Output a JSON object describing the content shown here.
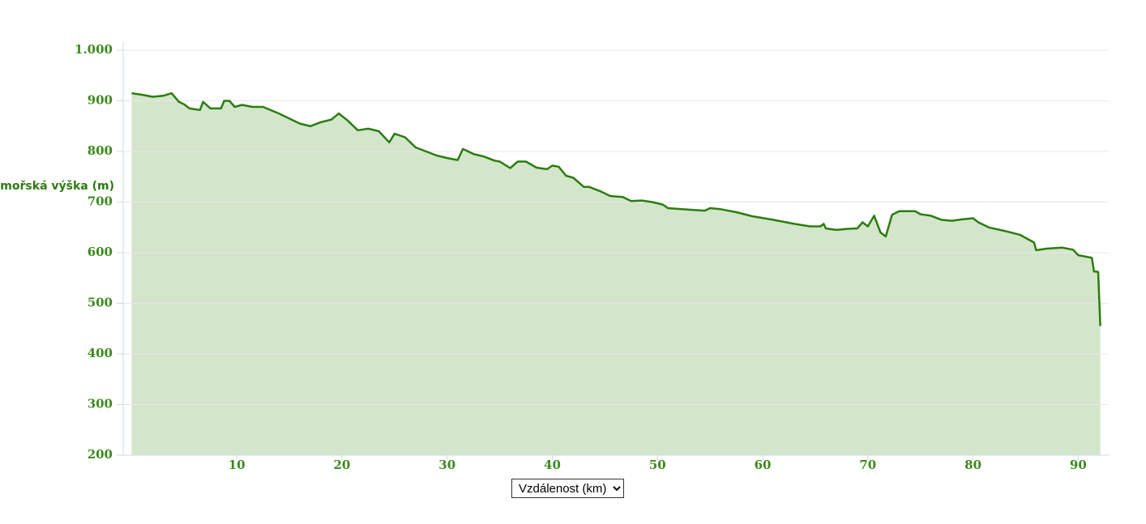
{
  "chart_data": {
    "type": "area",
    "y_label": "Nadmořská výška (m)",
    "x_label": "Vzdálenost (km)",
    "color": "#2a7d0e",
    "fill": "#d3e6cb",
    "grid": true,
    "xlim": [
      -0.8,
      92.9
    ],
    "xticks": [
      10,
      20,
      30,
      40,
      50,
      60,
      70,
      80,
      90
    ],
    "ylim": [
      200,
      1000
    ],
    "yticks": [
      200,
      300,
      400,
      500,
      600,
      700,
      800,
      900,
      {
        "value": 1000,
        "label": "1.000"
      }
    ],
    "x": [
      0,
      1,
      2,
      3,
      3.8,
      4.5,
      5,
      5.5,
      6.5,
      6.8,
      7.5,
      8.5,
      8.8,
      9.3,
      9.8,
      10.5,
      11.5,
      12.5,
      14,
      15,
      16,
      17,
      18,
      19,
      19.7,
      20.5,
      21.5,
      22.5,
      23.5,
      24.5,
      25,
      26,
      27,
      28,
      29,
      30,
      31,
      31.5,
      32.5,
      33.5,
      34.5,
      35,
      36,
      36.7,
      37.5,
      38.5,
      39.5,
      40,
      40.6,
      41.3,
      42,
      43,
      43.5,
      44.5,
      45.5,
      46.7,
      47.5,
      48.5,
      49.5,
      50.5,
      51,
      53,
      54.5,
      55,
      56,
      57.5,
      59,
      61,
      63,
      64.5,
      65.5,
      65.8,
      66,
      67,
      68,
      69,
      69.5,
      70,
      70.6,
      71.2,
      71.7,
      72.3,
      73,
      74.5,
      75,
      76,
      77,
      78,
      79,
      80,
      80.5,
      81.5,
      83,
      84.5,
      85.8,
      86,
      87,
      88.5,
      89.5,
      90,
      91.3,
      91.5,
      91.9,
      92.1
    ],
    "values": [
      915,
      912,
      908,
      910,
      915,
      898,
      893,
      885,
      882,
      898,
      885,
      885,
      900,
      900,
      888,
      892,
      888,
      888,
      875,
      865,
      855,
      850,
      858,
      863,
      875,
      862,
      842,
      845,
      840,
      818,
      835,
      828,
      808,
      800,
      792,
      787,
      783,
      805,
      795,
      790,
      782,
      780,
      767,
      780,
      780,
      768,
      765,
      772,
      770,
      752,
      748,
      730,
      730,
      722,
      712,
      710,
      702,
      703,
      700,
      695,
      688,
      685,
      683,
      688,
      686,
      680,
      672,
      665,
      657,
      652,
      652,
      657,
      648,
      645,
      647,
      648,
      660,
      652,
      673,
      640,
      632,
      675,
      682,
      682,
      676,
      673,
      665,
      663,
      666,
      668,
      660,
      650,
      643,
      635,
      620,
      605,
      608,
      610,
      606,
      595,
      590,
      563,
      562,
      455
    ]
  }
}
